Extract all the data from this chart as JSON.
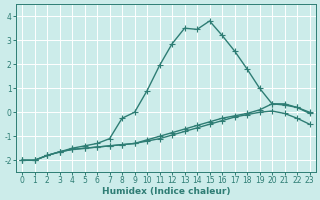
{
  "xlabel": "Humidex (Indice chaleur)",
  "background_color": "#ccecea",
  "grid_color": "#ffffff",
  "line_color": "#2e7d74",
  "xlim": [
    -0.5,
    23.5
  ],
  "ylim": [
    -2.5,
    4.5
  ],
  "yticks": [
    -2,
    -1,
    0,
    1,
    2,
    3,
    4
  ],
  "xticks": [
    0,
    1,
    2,
    3,
    4,
    5,
    6,
    7,
    8,
    9,
    10,
    11,
    12,
    13,
    14,
    15,
    16,
    17,
    18,
    19,
    20,
    21,
    22,
    23
  ],
  "series1_x": [
    0,
    1,
    2,
    3,
    4,
    5,
    6,
    7,
    8,
    9,
    10,
    11,
    12,
    13,
    14,
    15,
    16,
    17,
    18,
    19,
    20,
    21,
    22,
    23
  ],
  "series1_y": [
    -2.0,
    -2.0,
    -1.8,
    -1.65,
    -1.55,
    -1.5,
    -1.45,
    -1.4,
    -1.35,
    -1.3,
    -1.2,
    -1.1,
    -0.95,
    -0.8,
    -0.65,
    -0.5,
    -0.35,
    -0.2,
    -0.1,
    0.0,
    0.05,
    -0.05,
    -0.25,
    -0.5
  ],
  "series2_x": [
    0,
    1,
    2,
    3,
    4,
    5,
    6,
    7,
    8,
    9,
    10,
    11,
    12,
    13,
    14,
    15,
    16,
    17,
    18,
    19,
    20,
    21,
    22,
    23
  ],
  "series2_y": [
    -2.0,
    -2.0,
    -1.8,
    -1.65,
    -1.55,
    -1.5,
    -1.45,
    -1.4,
    -1.35,
    -1.3,
    -1.15,
    -1.0,
    -0.85,
    -0.7,
    -0.55,
    -0.4,
    -0.25,
    -0.15,
    -0.05,
    0.1,
    0.35,
    0.35,
    0.2,
    -0.05
  ],
  "series3_x": [
    0,
    1,
    2,
    3,
    4,
    5,
    6,
    7,
    8,
    9,
    10,
    11,
    12,
    13,
    14,
    15,
    16,
    17,
    18,
    19,
    20,
    21,
    22,
    23
  ],
  "series3_y": [
    -2.0,
    -2.0,
    -1.8,
    -1.65,
    -1.5,
    -1.4,
    -1.3,
    -1.1,
    -0.25,
    0.0,
    0.9,
    1.95,
    2.85,
    3.5,
    3.45,
    3.8,
    3.2,
    2.55,
    1.8,
    1.0,
    0.35,
    0.3,
    0.2,
    0.0
  ],
  "marker_size": 2.5,
  "line_width": 1.0
}
